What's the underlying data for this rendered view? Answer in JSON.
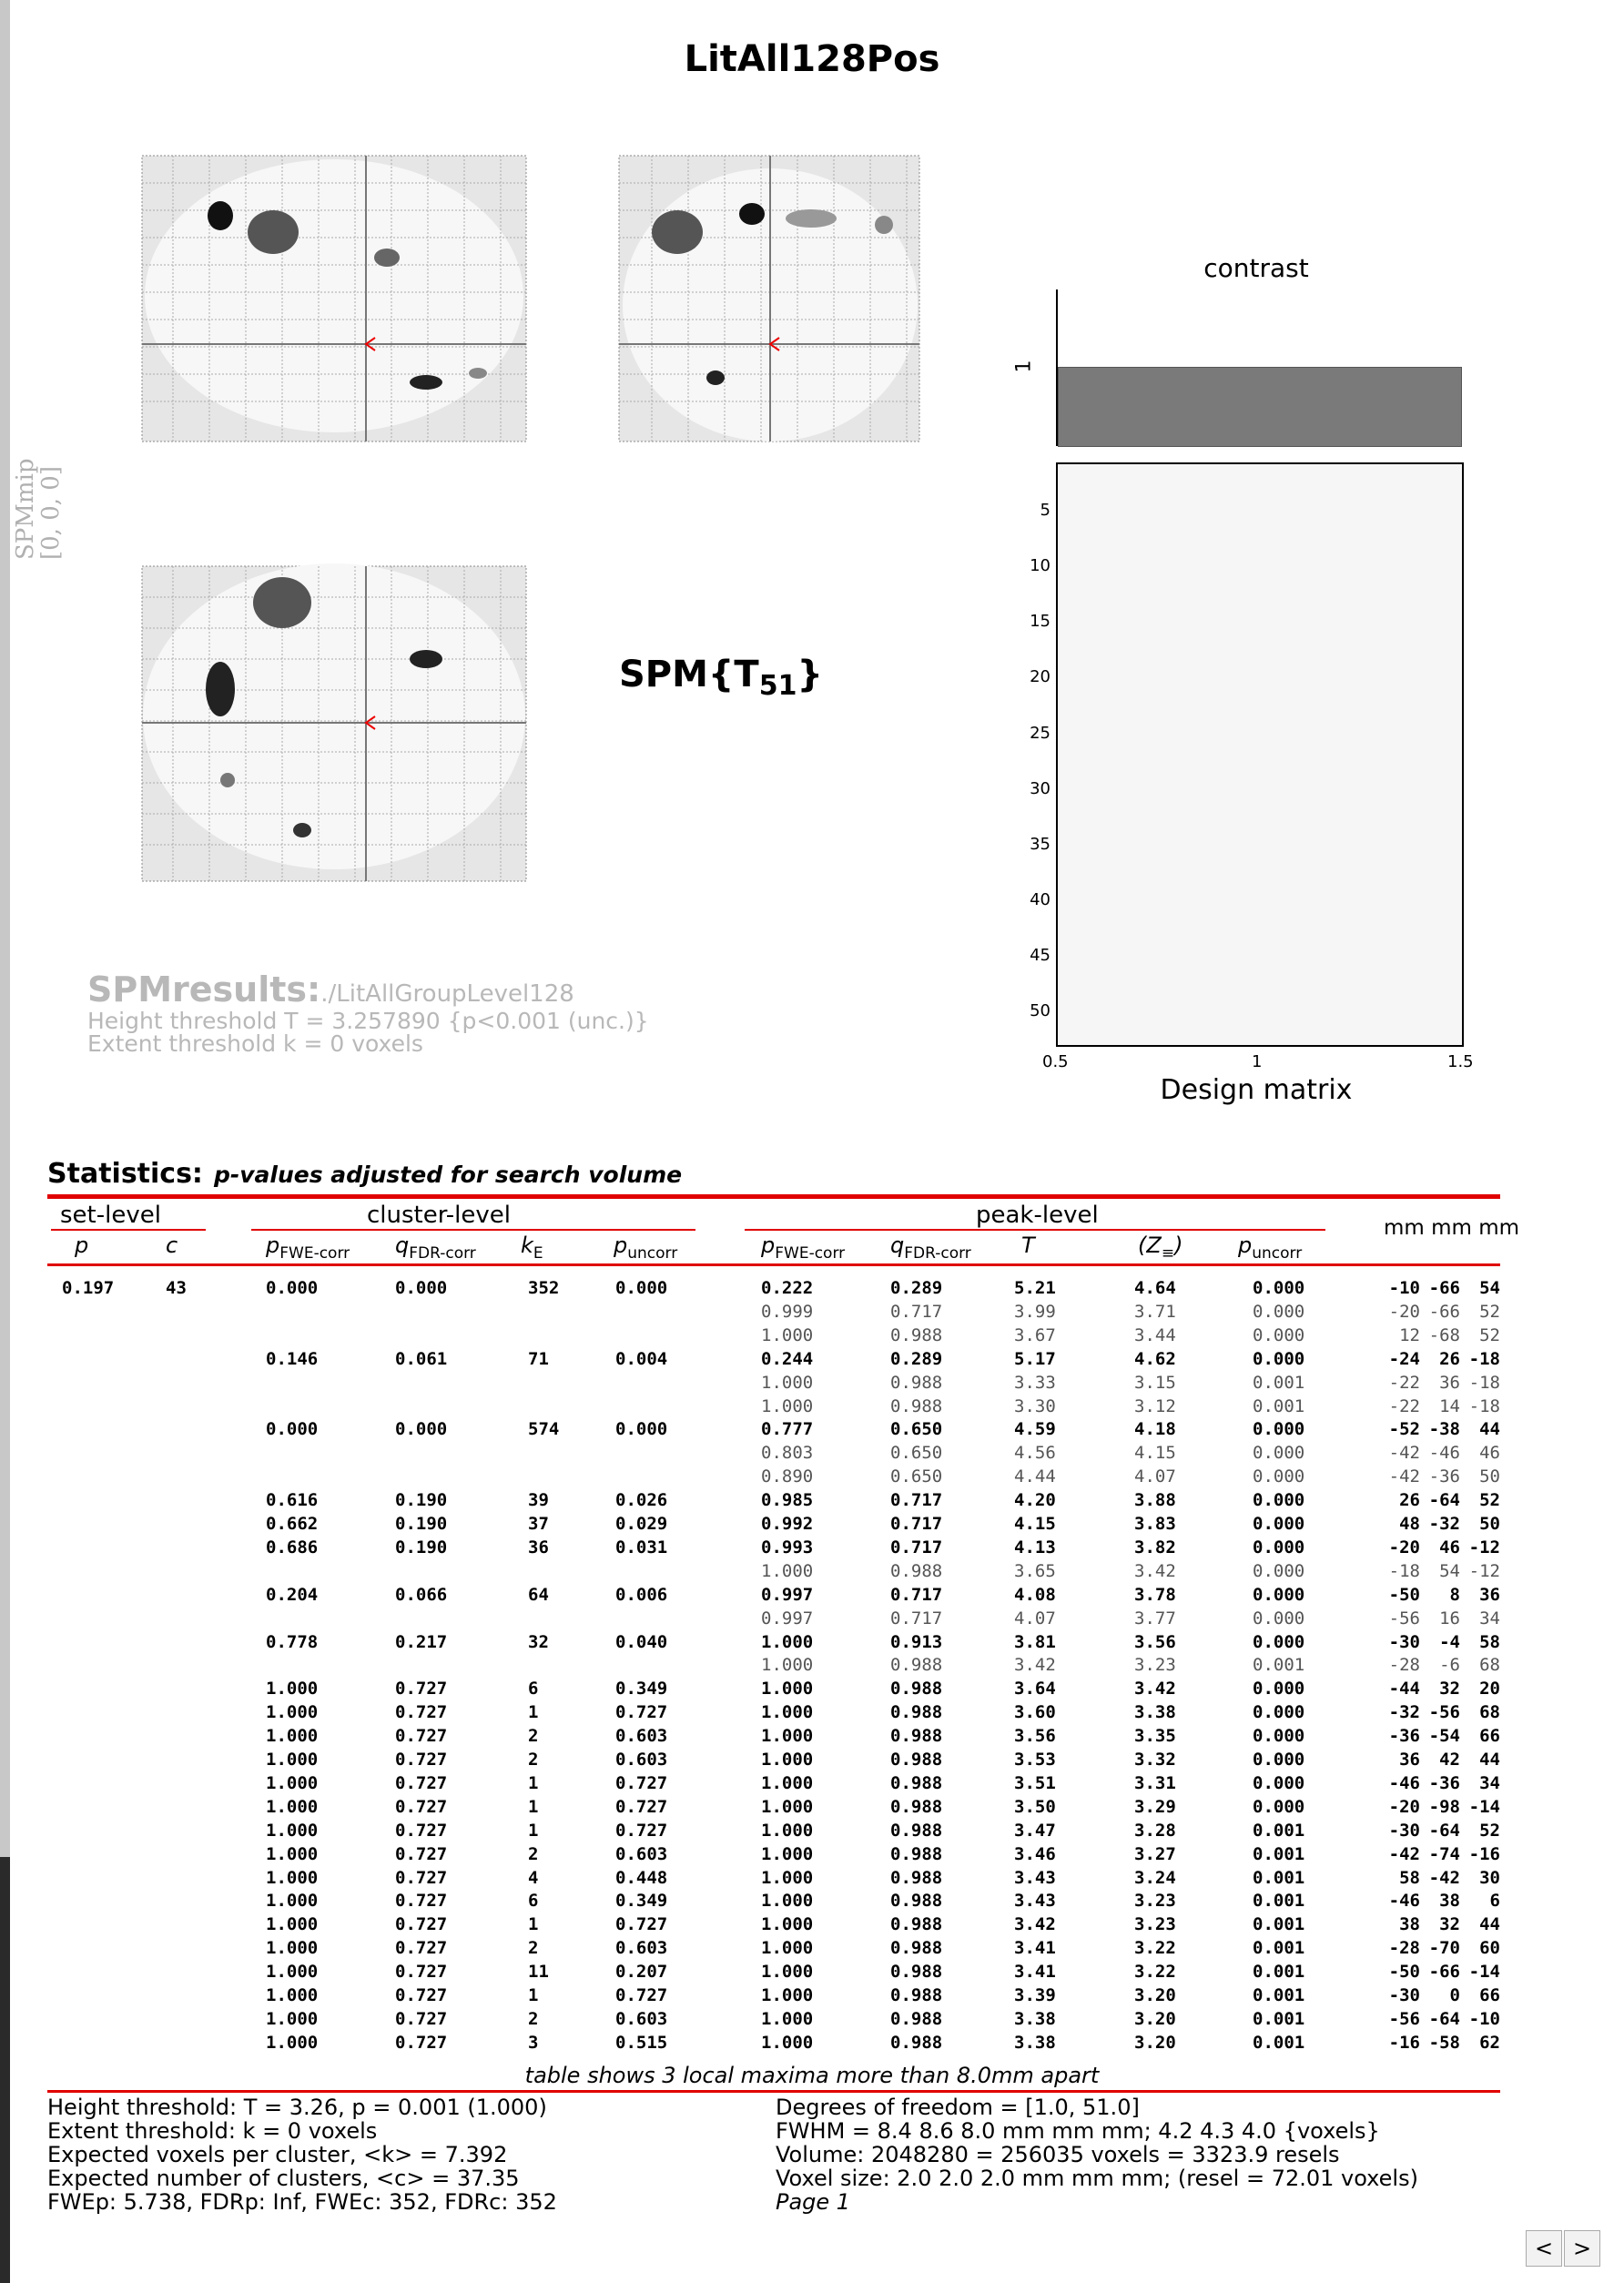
{
  "title": "LitAll128Pos",
  "mip": {
    "label_main": "SPMmip",
    "label_coords": "[0, 0, 0]"
  },
  "stat_label": {
    "base": "SPM{T",
    "sub": "51",
    "close": "}"
  },
  "contrast": {
    "title": "contrast",
    "y_tick": "1"
  },
  "design_matrix": {
    "title": "Design matrix",
    "x_ticks": [
      "0.5",
      "1",
      "1.5"
    ],
    "y_ticks": [
      "5",
      "10",
      "15",
      "20",
      "25",
      "30",
      "35",
      "40",
      "45",
      "50"
    ]
  },
  "results": {
    "title": "SPMresults:",
    "path": "./LitAllGroupLevel128",
    "height": "Height threshold T = 3.257890  {p<0.001 (unc.)}",
    "extent": "Extent threshold k = 0 voxels"
  },
  "statistics": {
    "heading": "Statistics:",
    "subheading": "p-values adjusted for search volume",
    "groups": {
      "set": "set-level",
      "cluster": "cluster-level",
      "peak": "peak-level",
      "coords": "mm mm mm"
    },
    "columns": {
      "set_p": "p",
      "set_c": "c",
      "c_pfwe": "p",
      "c_pfwe_sub": "FWE-corr",
      "c_qfdr": "q",
      "c_qfdr_sub": "FDR-corr",
      "c_ke": "k",
      "c_ke_sub": "E",
      "c_punc": "p",
      "c_punc_sub": "uncorr",
      "p_pfwe": "p",
      "p_pfwe_sub": "FWE-corr",
      "p_qfdr": "q",
      "p_qfdr_sub": "FDR-corr",
      "p_t": "T",
      "p_z": "(Z",
      "p_z_sub": "≡",
      "p_z_close": ")",
      "p_punc": "p",
      "p_punc_sub": "uncorr"
    },
    "rows": [
      [
        "0.197",
        "43",
        "0.000",
        "0.000",
        "352",
        "0.000",
        "0.222",
        "0.289",
        "5.21",
        "4.64",
        "0.000",
        "-10",
        "-66",
        "54",
        "main"
      ],
      [
        "",
        "",
        "",
        "",
        "",
        "",
        "0.999",
        "0.717",
        "3.99",
        "3.71",
        "0.000",
        "-20",
        "-66",
        "52",
        "sub"
      ],
      [
        "",
        "",
        "",
        "",
        "",
        "",
        "1.000",
        "0.988",
        "3.67",
        "3.44",
        "0.000",
        "12",
        "-68",
        "52",
        "sub"
      ],
      [
        "",
        "",
        "0.146",
        "0.061",
        "71",
        "0.004",
        "0.244",
        "0.289",
        "5.17",
        "4.62",
        "0.000",
        "-24",
        "26",
        "-18",
        "main"
      ],
      [
        "",
        "",
        "",
        "",
        "",
        "",
        "1.000",
        "0.988",
        "3.33",
        "3.15",
        "0.001",
        "-22",
        "36",
        "-18",
        "sub"
      ],
      [
        "",
        "",
        "",
        "",
        "",
        "",
        "1.000",
        "0.988",
        "3.30",
        "3.12",
        "0.001",
        "-22",
        "14",
        "-18",
        "sub"
      ],
      [
        "",
        "",
        "0.000",
        "0.000",
        "574",
        "0.000",
        "0.777",
        "0.650",
        "4.59",
        "4.18",
        "0.000",
        "-52",
        "-38",
        "44",
        "main"
      ],
      [
        "",
        "",
        "",
        "",
        "",
        "",
        "0.803",
        "0.650",
        "4.56",
        "4.15",
        "0.000",
        "-42",
        "-46",
        "46",
        "sub"
      ],
      [
        "",
        "",
        "",
        "",
        "",
        "",
        "0.890",
        "0.650",
        "4.44",
        "4.07",
        "0.000",
        "-42",
        "-36",
        "50",
        "sub"
      ],
      [
        "",
        "",
        "0.616",
        "0.190",
        "39",
        "0.026",
        "0.985",
        "0.717",
        "4.20",
        "3.88",
        "0.000",
        "26",
        "-64",
        "52",
        "main"
      ],
      [
        "",
        "",
        "0.662",
        "0.190",
        "37",
        "0.029",
        "0.992",
        "0.717",
        "4.15",
        "3.83",
        "0.000",
        "48",
        "-32",
        "50",
        "main"
      ],
      [
        "",
        "",
        "0.686",
        "0.190",
        "36",
        "0.031",
        "0.993",
        "0.717",
        "4.13",
        "3.82",
        "0.000",
        "-20",
        "46",
        "-12",
        "main"
      ],
      [
        "",
        "",
        "",
        "",
        "",
        "",
        "1.000",
        "0.988",
        "3.65",
        "3.42",
        "0.000",
        "-18",
        "54",
        "-12",
        "sub"
      ],
      [
        "",
        "",
        "0.204",
        "0.066",
        "64",
        "0.006",
        "0.997",
        "0.717",
        "4.08",
        "3.78",
        "0.000",
        "-50",
        "8",
        "36",
        "main"
      ],
      [
        "",
        "",
        "",
        "",
        "",
        "",
        "0.997",
        "0.717",
        "4.07",
        "3.77",
        "0.000",
        "-56",
        "16",
        "34",
        "sub"
      ],
      [
        "",
        "",
        "0.778",
        "0.217",
        "32",
        "0.040",
        "1.000",
        "0.913",
        "3.81",
        "3.56",
        "0.000",
        "-30",
        "-4",
        "58",
        "main"
      ],
      [
        "",
        "",
        "",
        "",
        "",
        "",
        "1.000",
        "0.988",
        "3.42",
        "3.23",
        "0.001",
        "-28",
        "-6",
        "68",
        "sub"
      ],
      [
        "",
        "",
        "1.000",
        "0.727",
        "6",
        "0.349",
        "1.000",
        "0.988",
        "3.64",
        "3.42",
        "0.000",
        "-44",
        "32",
        "20",
        "main"
      ],
      [
        "",
        "",
        "1.000",
        "0.727",
        "1",
        "0.727",
        "1.000",
        "0.988",
        "3.60",
        "3.38",
        "0.000",
        "-32",
        "-56",
        "68",
        "main"
      ],
      [
        "",
        "",
        "1.000",
        "0.727",
        "2",
        "0.603",
        "1.000",
        "0.988",
        "3.56",
        "3.35",
        "0.000",
        "-36",
        "-54",
        "66",
        "main"
      ],
      [
        "",
        "",
        "1.000",
        "0.727",
        "2",
        "0.603",
        "1.000",
        "0.988",
        "3.53",
        "3.32",
        "0.000",
        "36",
        "42",
        "44",
        "main"
      ],
      [
        "",
        "",
        "1.000",
        "0.727",
        "1",
        "0.727",
        "1.000",
        "0.988",
        "3.51",
        "3.31",
        "0.000",
        "-46",
        "-36",
        "34",
        "main"
      ],
      [
        "",
        "",
        "1.000",
        "0.727",
        "1",
        "0.727",
        "1.000",
        "0.988",
        "3.50",
        "3.29",
        "0.000",
        "-20",
        "-98",
        "-14",
        "main"
      ],
      [
        "",
        "",
        "1.000",
        "0.727",
        "1",
        "0.727",
        "1.000",
        "0.988",
        "3.47",
        "3.28",
        "0.001",
        "-30",
        "-64",
        "52",
        "main"
      ],
      [
        "",
        "",
        "1.000",
        "0.727",
        "2",
        "0.603",
        "1.000",
        "0.988",
        "3.46",
        "3.27",
        "0.001",
        "-42",
        "-74",
        "-16",
        "main"
      ],
      [
        "",
        "",
        "1.000",
        "0.727",
        "4",
        "0.448",
        "1.000",
        "0.988",
        "3.43",
        "3.24",
        "0.001",
        "58",
        "-42",
        "30",
        "main"
      ],
      [
        "",
        "",
        "1.000",
        "0.727",
        "6",
        "0.349",
        "1.000",
        "0.988",
        "3.43",
        "3.23",
        "0.001",
        "-46",
        "38",
        "6",
        "main"
      ],
      [
        "",
        "",
        "1.000",
        "0.727",
        "1",
        "0.727",
        "1.000",
        "0.988",
        "3.42",
        "3.23",
        "0.001",
        "38",
        "32",
        "44",
        "main"
      ],
      [
        "",
        "",
        "1.000",
        "0.727",
        "2",
        "0.603",
        "1.000",
        "0.988",
        "3.41",
        "3.22",
        "0.001",
        "-28",
        "-70",
        "60",
        "main"
      ],
      [
        "",
        "",
        "1.000",
        "0.727",
        "11",
        "0.207",
        "1.000",
        "0.988",
        "3.41",
        "3.22",
        "0.001",
        "-50",
        "-66",
        "-14",
        "main"
      ],
      [
        "",
        "",
        "1.000",
        "0.727",
        "1",
        "0.727",
        "1.000",
        "0.988",
        "3.39",
        "3.20",
        "0.001",
        "-30",
        "0",
        "66",
        "main"
      ],
      [
        "",
        "",
        "1.000",
        "0.727",
        "2",
        "0.603",
        "1.000",
        "0.988",
        "3.38",
        "3.20",
        "0.001",
        "-56",
        "-64",
        "-10",
        "main"
      ],
      [
        "",
        "",
        "1.000",
        "0.727",
        "3",
        "0.515",
        "1.000",
        "0.988",
        "3.38",
        "3.20",
        "0.001",
        "-16",
        "-58",
        "62",
        "main"
      ]
    ],
    "note": "table shows 3 local maxima more than 8.0mm apart"
  },
  "footer": {
    "left": [
      "Height threshold: T = 3.26, p = 0.001 (1.000)",
      "Extent threshold: k = 0 voxels",
      "Expected voxels per cluster, <k> = 7.392",
      "Expected number of clusters, <c> = 37.35",
      "FWEp: 5.738, FDRp: Inf, FWEc: 352, FDRc: 352"
    ],
    "right": [
      "Degrees of freedom = [1.0, 51.0]",
      "FWHM = 8.4 8.6 8.0 mm mm mm; 4.2 4.3 4.0 {voxels}",
      "Volume: 2048280 = 256035 voxels = 3323.9 resels",
      "Voxel size: 2.0 2.0 2.0 mm mm mm; (resel = 72.01 voxels)"
    ],
    "page": "Page 1"
  },
  "nav": {
    "prev": "<",
    "next": ">"
  }
}
